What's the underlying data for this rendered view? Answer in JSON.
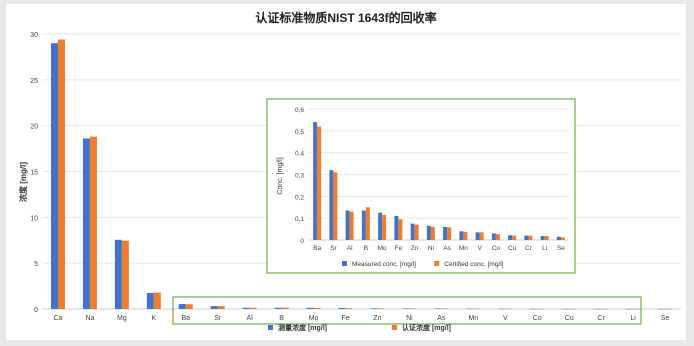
{
  "chart_data": [
    {
      "type": "bar",
      "title": "认证标准物质NIST 1643f的回收率",
      "xlabel": "",
      "ylabel": "浓度 [mg/l]",
      "ylim": [
        0,
        30
      ],
      "yticks": [
        "0",
        "5",
        "10",
        "15",
        "20",
        "25",
        "30"
      ],
      "categories": [
        "Ca",
        "Na",
        "Mg",
        "K",
        "Ba",
        "Sr",
        "Al",
        "B",
        "Mo",
        "Fe",
        "Zn",
        "Ni",
        "As",
        "Mn",
        "V",
        "Co",
        "Cu",
        "Cr",
        "Li",
        "Se"
      ],
      "series": [
        {
          "name": "测量浓度",
          "unit": "[mg/l]",
          "color": "#4472c4",
          "values": [
            29.0,
            18.6,
            7.55,
            1.75,
            0.54,
            0.32,
            0.135,
            0.135,
            0.125,
            0.11,
            0.075,
            0.065,
            0.06,
            0.04,
            0.035,
            0.03,
            0.022,
            0.02,
            0.018,
            0.015
          ]
        },
        {
          "name": "认证浓度",
          "unit": "[mg/l]",
          "color": "#ed7d31",
          "values": [
            29.4,
            18.8,
            7.45,
            1.8,
            0.52,
            0.31,
            0.13,
            0.15,
            0.115,
            0.095,
            0.07,
            0.06,
            0.058,
            0.037,
            0.035,
            0.027,
            0.02,
            0.02,
            0.018,
            0.012
          ]
        }
      ],
      "grid": true,
      "legend_position": "bottom"
    },
    {
      "type": "bar",
      "title": "",
      "xlabel": "",
      "ylabel": "Conc. [mg/l]",
      "ylim": [
        0,
        0.6
      ],
      "yticks": [
        "0",
        "0,1",
        "0,2",
        "0,3",
        "0,4",
        "0,5",
        "0,6"
      ],
      "categories": [
        "Ba",
        "Sr",
        "Al",
        "B",
        "Mo",
        "Fe",
        "Zn",
        "Ni",
        "As",
        "Mn",
        "V",
        "Co",
        "Cu",
        "Cr",
        "Li",
        "Se"
      ],
      "series": [
        {
          "name": "Measured conc. [mg/l]",
          "color": "#4472c4",
          "values": [
            0.54,
            0.32,
            0.135,
            0.135,
            0.125,
            0.11,
            0.075,
            0.065,
            0.06,
            0.04,
            0.035,
            0.03,
            0.022,
            0.02,
            0.018,
            0.015
          ]
        },
        {
          "name": "Certified conc. [mg/l]",
          "color": "#ed7d31",
          "values": [
            0.52,
            0.31,
            0.13,
            0.15,
            0.115,
            0.095,
            0.07,
            0.06,
            0.058,
            0.037,
            0.035,
            0.027,
            0.02,
            0.02,
            0.018,
            0.012
          ]
        }
      ],
      "grid": true,
      "legend_position": "bottom"
    }
  ],
  "highlight_color": "#70ad47"
}
